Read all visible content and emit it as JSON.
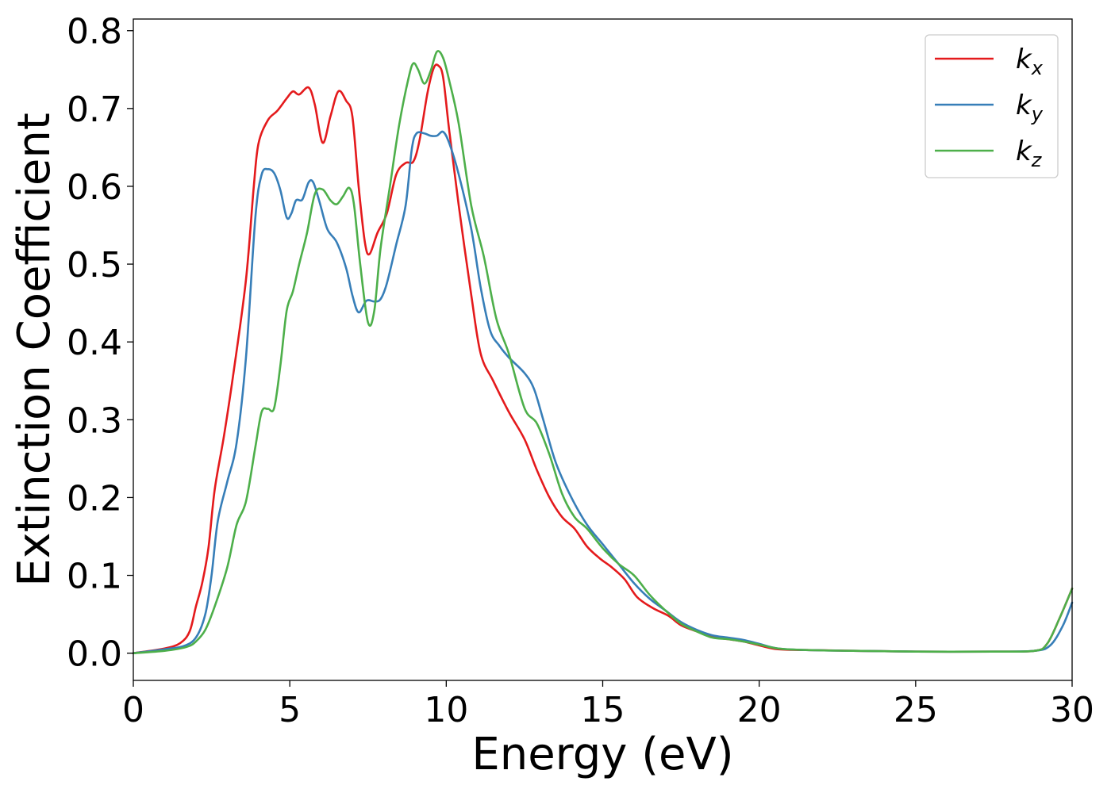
{
  "chart_data": {
    "type": "line",
    "title": "",
    "xlabel": "Energy (eV)",
    "ylabel": "Extinction Coefficient",
    "xlim": [
      0,
      30
    ],
    "ylim": [
      -0.035,
      0.815
    ],
    "xticks": [
      0,
      5,
      10,
      15,
      20,
      25,
      30
    ],
    "yticks": [
      0.0,
      0.1,
      0.2,
      0.3,
      0.4,
      0.5,
      0.6,
      0.7,
      0.8
    ],
    "xtick_labels": [
      "0",
      "5",
      "10",
      "15",
      "20",
      "25",
      "30"
    ],
    "ytick_labels": [
      "0.0",
      "0.1",
      "0.2",
      "0.3",
      "0.4",
      "0.5",
      "0.6",
      "0.7",
      "0.8"
    ],
    "grid": false,
    "legend_position": "top-right",
    "series": [
      {
        "name": "k",
        "subscript": "x",
        "color": "#e41a1c",
        "points": [
          [
            0,
            0.0
          ],
          [
            1,
            0.006
          ],
          [
            1.5,
            0.013
          ],
          [
            1.8,
            0.028
          ],
          [
            2.0,
            0.06
          ],
          [
            2.2,
            0.09
          ],
          [
            2.4,
            0.135
          ],
          [
            2.6,
            0.21
          ],
          [
            2.9,
            0.28
          ],
          [
            3.2,
            0.36
          ],
          [
            3.6,
            0.48
          ],
          [
            3.85,
            0.6
          ],
          [
            4.0,
            0.655
          ],
          [
            4.3,
            0.685
          ],
          [
            4.6,
            0.697
          ],
          [
            4.9,
            0.713
          ],
          [
            5.1,
            0.722
          ],
          [
            5.3,
            0.718
          ],
          [
            5.6,
            0.727
          ],
          [
            5.8,
            0.705
          ],
          [
            6.05,
            0.656
          ],
          [
            6.3,
            0.69
          ],
          [
            6.55,
            0.722
          ],
          [
            6.8,
            0.71
          ],
          [
            7.0,
            0.69
          ],
          [
            7.2,
            0.6
          ],
          [
            7.4,
            0.528
          ],
          [
            7.55,
            0.513
          ],
          [
            7.8,
            0.54
          ],
          [
            8.1,
            0.565
          ],
          [
            8.4,
            0.615
          ],
          [
            8.7,
            0.63
          ],
          [
            8.95,
            0.632
          ],
          [
            9.15,
            0.66
          ],
          [
            9.4,
            0.72
          ],
          [
            9.6,
            0.752
          ],
          [
            9.75,
            0.755
          ],
          [
            9.9,
            0.74
          ],
          [
            10.1,
            0.67
          ],
          [
            10.4,
            0.575
          ],
          [
            10.8,
            0.46
          ],
          [
            11.1,
            0.385
          ],
          [
            11.5,
            0.35
          ],
          [
            12.0,
            0.31
          ],
          [
            12.5,
            0.275
          ],
          [
            12.9,
            0.235
          ],
          [
            13.3,
            0.2
          ],
          [
            13.7,
            0.175
          ],
          [
            14.1,
            0.16
          ],
          [
            14.5,
            0.137
          ],
          [
            14.9,
            0.122
          ],
          [
            15.3,
            0.11
          ],
          [
            15.7,
            0.095
          ],
          [
            16.1,
            0.072
          ],
          [
            16.6,
            0.058
          ],
          [
            17.1,
            0.048
          ],
          [
            17.5,
            0.036
          ],
          [
            18.0,
            0.028
          ],
          [
            18.5,
            0.021
          ],
          [
            19.0,
            0.018
          ],
          [
            19.5,
            0.015
          ],
          [
            20.0,
            0.01
          ],
          [
            20.6,
            0.005
          ],
          [
            21.5,
            0.004
          ],
          [
            23,
            0.003
          ],
          [
            25,
            0.002
          ],
          [
            27.5,
            0.002
          ],
          [
            28.8,
            0.003
          ],
          [
            29.2,
            0.012
          ],
          [
            29.6,
            0.045
          ],
          [
            30,
            0.083
          ]
        ]
      },
      {
        "name": "k",
        "subscript": "y",
        "color": "#377eb8",
        "points": [
          [
            0,
            0.0
          ],
          [
            1,
            0.005
          ],
          [
            1.6,
            0.009
          ],
          [
            2.0,
            0.02
          ],
          [
            2.3,
            0.05
          ],
          [
            2.5,
            0.1
          ],
          [
            2.7,
            0.17
          ],
          [
            3.0,
            0.22
          ],
          [
            3.3,
            0.27
          ],
          [
            3.6,
            0.38
          ],
          [
            3.9,
            0.56
          ],
          [
            4.1,
            0.615
          ],
          [
            4.3,
            0.622
          ],
          [
            4.5,
            0.617
          ],
          [
            4.7,
            0.595
          ],
          [
            4.9,
            0.56
          ],
          [
            5.05,
            0.565
          ],
          [
            5.2,
            0.582
          ],
          [
            5.4,
            0.583
          ],
          [
            5.6,
            0.605
          ],
          [
            5.75,
            0.605
          ],
          [
            5.95,
            0.58
          ],
          [
            6.2,
            0.545
          ],
          [
            6.5,
            0.528
          ],
          [
            6.8,
            0.495
          ],
          [
            7.0,
            0.46
          ],
          [
            7.2,
            0.438
          ],
          [
            7.45,
            0.453
          ],
          [
            7.7,
            0.452
          ],
          [
            7.9,
            0.455
          ],
          [
            8.1,
            0.475
          ],
          [
            8.4,
            0.525
          ],
          [
            8.7,
            0.575
          ],
          [
            8.9,
            0.648
          ],
          [
            9.05,
            0.668
          ],
          [
            9.3,
            0.668
          ],
          [
            9.5,
            0.665
          ],
          [
            9.7,
            0.665
          ],
          [
            9.9,
            0.67
          ],
          [
            10.1,
            0.655
          ],
          [
            10.4,
            0.615
          ],
          [
            10.8,
            0.545
          ],
          [
            11.1,
            0.47
          ],
          [
            11.4,
            0.415
          ],
          [
            11.7,
            0.395
          ],
          [
            12.0,
            0.38
          ],
          [
            12.5,
            0.36
          ],
          [
            12.8,
            0.34
          ],
          [
            13.1,
            0.3
          ],
          [
            13.5,
            0.245
          ],
          [
            14.0,
            0.2
          ],
          [
            14.5,
            0.165
          ],
          [
            15.0,
            0.14
          ],
          [
            15.5,
            0.115
          ],
          [
            16.0,
            0.09
          ],
          [
            16.5,
            0.07
          ],
          [
            17.0,
            0.055
          ],
          [
            17.5,
            0.04
          ],
          [
            18.0,
            0.03
          ],
          [
            18.5,
            0.023
          ],
          [
            19.0,
            0.02
          ],
          [
            19.5,
            0.017
          ],
          [
            20.0,
            0.012
          ],
          [
            20.6,
            0.006
          ],
          [
            21.5,
            0.004
          ],
          [
            23,
            0.003
          ],
          [
            25,
            0.002
          ],
          [
            27.5,
            0.002
          ],
          [
            28.8,
            0.003
          ],
          [
            29.3,
            0.01
          ],
          [
            29.7,
            0.035
          ],
          [
            30,
            0.065
          ]
        ]
      },
      {
        "name": "k",
        "subscript": "z",
        "color": "#4daf4a",
        "points": [
          [
            0,
            0.0
          ],
          [
            1,
            0.003
          ],
          [
            1.7,
            0.008
          ],
          [
            2.0,
            0.015
          ],
          [
            2.3,
            0.03
          ],
          [
            2.6,
            0.06
          ],
          [
            3.0,
            0.11
          ],
          [
            3.3,
            0.165
          ],
          [
            3.6,
            0.195
          ],
          [
            3.9,
            0.265
          ],
          [
            4.1,
            0.31
          ],
          [
            4.3,
            0.314
          ],
          [
            4.5,
            0.315
          ],
          [
            4.7,
            0.37
          ],
          [
            4.9,
            0.44
          ],
          [
            5.1,
            0.465
          ],
          [
            5.3,
            0.5
          ],
          [
            5.55,
            0.54
          ],
          [
            5.8,
            0.59
          ],
          [
            6.05,
            0.596
          ],
          [
            6.3,
            0.582
          ],
          [
            6.5,
            0.577
          ],
          [
            6.7,
            0.587
          ],
          [
            6.9,
            0.598
          ],
          [
            7.05,
            0.577
          ],
          [
            7.25,
            0.5
          ],
          [
            7.5,
            0.425
          ],
          [
            7.7,
            0.44
          ],
          [
            7.9,
            0.52
          ],
          [
            8.2,
            0.6
          ],
          [
            8.5,
            0.68
          ],
          [
            8.8,
            0.74
          ],
          [
            8.95,
            0.758
          ],
          [
            9.1,
            0.75
          ],
          [
            9.3,
            0.732
          ],
          [
            9.5,
            0.748
          ],
          [
            9.7,
            0.773
          ],
          [
            9.9,
            0.765
          ],
          [
            10.1,
            0.735
          ],
          [
            10.4,
            0.68
          ],
          [
            10.8,
            0.575
          ],
          [
            11.2,
            0.51
          ],
          [
            11.6,
            0.43
          ],
          [
            12.0,
            0.385
          ],
          [
            12.5,
            0.315
          ],
          [
            12.9,
            0.295
          ],
          [
            13.3,
            0.255
          ],
          [
            13.7,
            0.205
          ],
          [
            14.1,
            0.175
          ],
          [
            14.5,
            0.16
          ],
          [
            15.0,
            0.135
          ],
          [
            15.5,
            0.115
          ],
          [
            16.0,
            0.1
          ],
          [
            16.5,
            0.075
          ],
          [
            17.0,
            0.055
          ],
          [
            17.5,
            0.038
          ],
          [
            18.0,
            0.028
          ],
          [
            18.5,
            0.02
          ],
          [
            19.0,
            0.018
          ],
          [
            19.5,
            0.015
          ],
          [
            20.0,
            0.011
          ],
          [
            20.6,
            0.006
          ],
          [
            21.5,
            0.004
          ],
          [
            23,
            0.003
          ],
          [
            25,
            0.002
          ],
          [
            27.5,
            0.002
          ],
          [
            28.8,
            0.003
          ],
          [
            29.2,
            0.012
          ],
          [
            29.6,
            0.045
          ],
          [
            30,
            0.083
          ]
        ]
      }
    ]
  }
}
